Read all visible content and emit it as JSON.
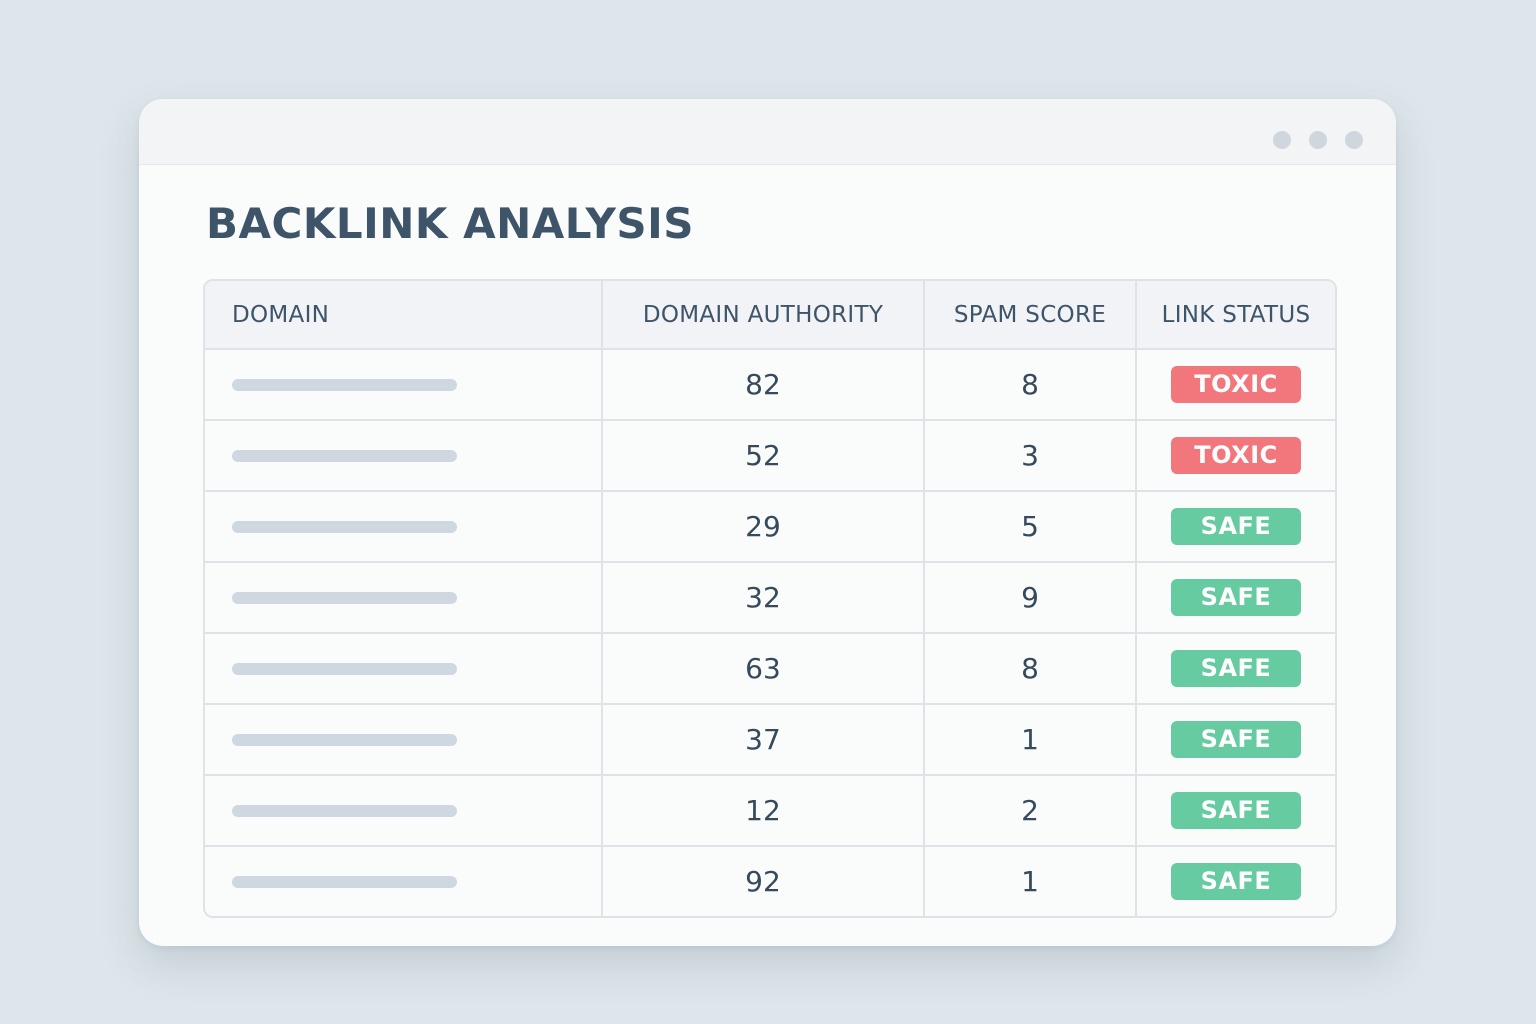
{
  "app": {
    "title": "BACKLINK ANALYSIS"
  },
  "colors": {
    "toxic": "#f2777d",
    "safe": "#67cba1",
    "highlight_red": "#f8a6ad",
    "highlight_green": "#80d1b2",
    "title": "#3e5468"
  },
  "table": {
    "columns": [
      "DOMAIN",
      "DOMAIN AUTHORITY",
      "SPAM SCORE",
      "LINK STATUS"
    ],
    "rows": [
      {
        "domain": "",
        "authority": "82",
        "spam": "8",
        "status": "TOXIC",
        "status_type": "toxic",
        "highlight": "none"
      },
      {
        "domain": "",
        "authority": "52",
        "spam": "3",
        "status": "TOXIC",
        "status_type": "toxic",
        "highlight": "none"
      },
      {
        "domain": "",
        "authority": "29",
        "spam": "5",
        "status": "SAFE",
        "status_type": "safe",
        "highlight": "none"
      },
      {
        "domain": "",
        "authority": "32",
        "spam": "9",
        "status": "SAFE",
        "status_type": "safe",
        "highlight": "none"
      },
      {
        "domain": "",
        "authority": "63",
        "spam": "8",
        "status": "SAFE",
        "status_type": "safe",
        "highlight": "red"
      },
      {
        "domain": "",
        "authority": "37",
        "spam": "1",
        "status": "SAFE",
        "status_type": "safe",
        "highlight": "none"
      },
      {
        "domain": "",
        "authority": "12",
        "spam": "2",
        "status": "SAFE",
        "status_type": "safe",
        "highlight": "green"
      },
      {
        "domain": "",
        "authority": "92",
        "spam": "1",
        "status": "SAFE",
        "status_type": "safe",
        "highlight": "none"
      }
    ]
  }
}
